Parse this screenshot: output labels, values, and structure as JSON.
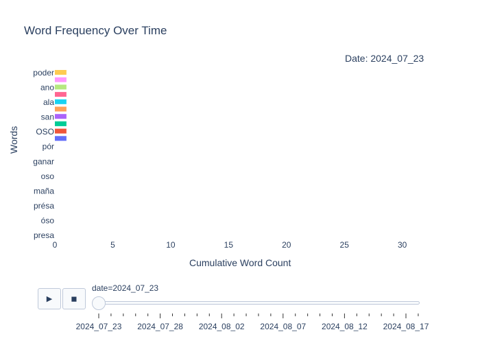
{
  "chart_data": {
    "type": "bar",
    "orientation": "horizontal",
    "title": "Word Frequency Over Time",
    "xlabel": "Cumulative Word Count",
    "ylabel": "Words",
    "xlim": [
      0,
      31.5
    ],
    "x_ticks": [
      "0",
      "5",
      "10",
      "15",
      "20",
      "25",
      "30"
    ],
    "y_tick_labels": [
      "poder",
      "ano",
      "ala",
      "san",
      "OSO",
      "pór",
      "ganar",
      "oso",
      "maña",
      "présa",
      "óso",
      "presa"
    ],
    "bars": [
      {
        "value": 1,
        "color": "#FECB52"
      },
      {
        "value": 1,
        "color": "#FF97FF"
      },
      {
        "value": 1,
        "color": "#B6E880"
      },
      {
        "value": 1,
        "color": "#FF6692"
      },
      {
        "value": 1,
        "color": "#19D3F3"
      },
      {
        "value": 1,
        "color": "#FFA15A"
      },
      {
        "value": 1,
        "color": "#AB63FA"
      },
      {
        "value": 1,
        "color": "#00CC96"
      },
      {
        "value": 1,
        "color": "#EF553B"
      },
      {
        "value": 1,
        "color": "#636EFA"
      }
    ],
    "annotation": "Date: 2024_07_23",
    "grid": false
  },
  "controls": {
    "play_icon": "play-icon",
    "stop_icon": "stop-icon",
    "play_symbol": "▶",
    "stop_symbol": "◼",
    "slider_label": "date=2024_07_23",
    "slider_labels": [
      "2024_07_23",
      "2024_07_28",
      "2024_08_02",
      "2024_08_07",
      "2024_08_12",
      "2024_08_17"
    ],
    "slider_value": "2024_07_23"
  }
}
